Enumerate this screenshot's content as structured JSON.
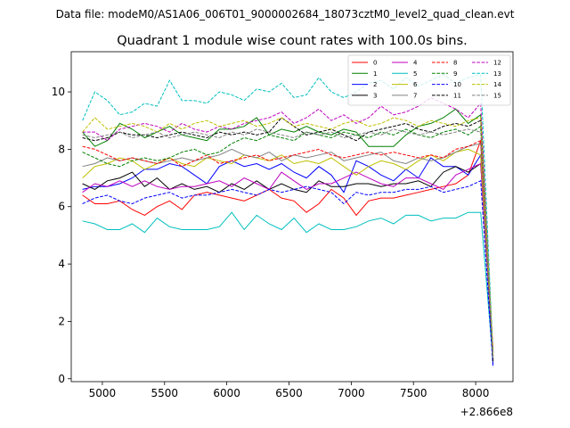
{
  "suptitle": "Data file: modeM0/AS1A06_006T01_9000002684_18073cztM0_level2_quad_clean.evt",
  "chart_data": {
    "type": "line",
    "title": "Quadrant 1 module wise count rates with 100.0s bins.",
    "xlabel": "",
    "ylabel": "",
    "x_offset_label": "+2.866e8",
    "xlim": [
      4750,
      8300
    ],
    "ylim": [
      -0.1,
      11.4
    ],
    "x_ticks": [
      5000,
      5500,
      6000,
      6500,
      7000,
      7500,
      8000
    ],
    "y_ticks": [
      0,
      2,
      4,
      6,
      8,
      10
    ],
    "grid": false,
    "legend": {
      "placement": "top-right",
      "columns": 4
    },
    "x": [
      4840,
      4940,
      5040,
      5140,
      5240,
      5340,
      5440,
      5540,
      5640,
      5740,
      5840,
      5940,
      6040,
      6140,
      6240,
      6340,
      6440,
      6540,
      6640,
      6740,
      6840,
      6940,
      7040,
      7140,
      7240,
      7340,
      7440,
      7540,
      7640,
      7740,
      7840,
      7940,
      8040,
      8140
    ],
    "series": [
      {
        "name": "0",
        "color": "#ff0000",
        "dash": "solid",
        "values": [
          6.4,
          6.1,
          6.1,
          6.2,
          5.9,
          5.7,
          6.0,
          6.2,
          5.9,
          6.4,
          6.5,
          6.4,
          6.3,
          6.2,
          6.4,
          6.6,
          6.3,
          6.2,
          5.8,
          6.1,
          6.6,
          6.3,
          5.7,
          6.2,
          6.3,
          6.3,
          6.4,
          6.5,
          6.6,
          6.7,
          6.8,
          7.1,
          8.3,
          1.0
        ]
      },
      {
        "name": "1",
        "color": "#008000",
        "dash": "solid",
        "values": [
          8.6,
          8.1,
          8.3,
          8.9,
          8.7,
          8.4,
          8.6,
          8.8,
          8.5,
          8.4,
          8.3,
          8.7,
          8.7,
          8.8,
          9.1,
          8.5,
          8.7,
          8.6,
          8.8,
          8.6,
          8.5,
          8.7,
          8.6,
          8.1,
          8.1,
          8.1,
          8.5,
          8.8,
          8.9,
          9.1,
          9.4,
          8.9,
          9.2,
          0.8
        ]
      },
      {
        "name": "2",
        "color": "#0000ff",
        "dash": "solid",
        "values": [
          6.6,
          6.7,
          6.7,
          6.8,
          7.0,
          7.3,
          7.3,
          7.5,
          7.4,
          7.1,
          6.8,
          7.4,
          7.6,
          7.4,
          7.5,
          7.3,
          7.5,
          7.2,
          7.0,
          7.4,
          7.1,
          6.5,
          7.6,
          7.4,
          7.1,
          6.9,
          7.3,
          7.0,
          7.7,
          7.4,
          7.4,
          7.1,
          7.8,
          0.5
        ]
      },
      {
        "name": "3",
        "color": "#000000",
        "dash": "solid",
        "values": [
          6.8,
          6.6,
          6.9,
          7.0,
          7.2,
          6.7,
          7.0,
          6.6,
          6.8,
          6.6,
          6.7,
          6.5,
          6.8,
          6.6,
          6.9,
          6.6,
          6.8,
          6.6,
          6.5,
          6.9,
          6.7,
          6.7,
          6.8,
          6.8,
          6.7,
          6.8,
          6.8,
          6.9,
          6.7,
          7.2,
          7.4,
          7.2,
          7.5,
          0.8
        ]
      },
      {
        "name": "4",
        "color": "#bf00bf",
        "dash": "solid",
        "values": [
          6.5,
          6.8,
          6.7,
          6.9,
          6.7,
          6.9,
          6.7,
          6.6,
          6.7,
          6.7,
          6.8,
          6.9,
          6.7,
          7.0,
          6.8,
          6.6,
          7.2,
          6.9,
          6.6,
          6.8,
          6.8,
          7.0,
          7.2,
          7.0,
          6.8,
          6.7,
          7.0,
          7.0,
          6.8,
          6.6,
          7.1,
          7.3,
          7.5,
          0.7
        ]
      },
      {
        "name": "5",
        "color": "#00bfbf",
        "dash": "solid",
        "values": [
          5.5,
          5.4,
          5.2,
          5.2,
          5.4,
          5.1,
          5.6,
          5.3,
          5.2,
          5.2,
          5.2,
          5.3,
          5.8,
          5.2,
          5.7,
          5.4,
          5.2,
          5.6,
          5.1,
          5.4,
          5.2,
          5.2,
          5.3,
          5.5,
          5.6,
          5.4,
          5.7,
          5.7,
          5.5,
          5.6,
          5.6,
          5.8,
          5.8,
          0.6
        ]
      },
      {
        "name": "6",
        "color": "#bfbf00",
        "dash": "solid",
        "values": [
          7.0,
          7.4,
          7.5,
          7.7,
          7.6,
          7.3,
          7.5,
          7.7,
          7.5,
          7.4,
          7.7,
          7.6,
          7.5,
          7.8,
          7.7,
          7.6,
          7.8,
          7.5,
          7.6,
          7.5,
          7.7,
          7.4,
          7.1,
          7.4,
          7.6,
          7.5,
          7.3,
          7.6,
          7.8,
          7.6,
          7.9,
          8.0,
          7.8,
          0.8
        ]
      },
      {
        "name": "7",
        "color": "#808080",
        "dash": "solid",
        "values": [
          7.4,
          7.5,
          7.7,
          7.6,
          7.7,
          7.6,
          7.5,
          7.6,
          7.7,
          7.6,
          7.7,
          7.8,
          8.0,
          7.8,
          7.7,
          7.9,
          7.6,
          7.8,
          7.7,
          7.8,
          7.9,
          7.6,
          7.7,
          7.8,
          7.9,
          7.6,
          7.5,
          7.7,
          7.6,
          7.7,
          7.9,
          8.1,
          8.2,
          0.9
        ]
      },
      {
        "name": "8",
        "color": "#ff0000",
        "dash": "dashed",
        "values": [
          8.1,
          8.0,
          7.8,
          7.6,
          7.7,
          7.6,
          7.5,
          7.7,
          7.4,
          7.6,
          7.8,
          7.5,
          7.6,
          7.7,
          7.8,
          7.6,
          7.7,
          7.8,
          7.9,
          8.0,
          7.8,
          7.7,
          7.8,
          7.9,
          7.8,
          7.9,
          7.8,
          7.7,
          7.8,
          7.7,
          8.0,
          8.1,
          8.3,
          0.8
        ]
      },
      {
        "name": "9",
        "color": "#008000",
        "dash": "dashed",
        "values": [
          7.9,
          7.7,
          7.5,
          7.4,
          7.6,
          7.7,
          7.6,
          7.7,
          7.9,
          8.0,
          7.8,
          7.9,
          8.2,
          8.4,
          8.3,
          8.5,
          8.4,
          8.3,
          8.6,
          8.5,
          8.4,
          8.6,
          8.5,
          8.4,
          8.6,
          8.5,
          8.7,
          8.5,
          8.4,
          8.6,
          8.7,
          8.5,
          8.8,
          0.7
        ]
      },
      {
        "name": "10",
        "color": "#0000ff",
        "dash": "dashed",
        "values": [
          6.1,
          6.3,
          6.4,
          6.2,
          6.1,
          6.3,
          6.4,
          6.5,
          6.3,
          6.4,
          6.4,
          6.5,
          6.6,
          6.5,
          6.4,
          6.6,
          6.5,
          6.6,
          6.7,
          6.6,
          6.5,
          6.1,
          6.5,
          6.4,
          6.5,
          6.5,
          6.6,
          6.6,
          6.7,
          6.5,
          6.6,
          6.7,
          6.9,
          0.4
        ]
      },
      {
        "name": "11",
        "color": "#000000",
        "dash": "dashed",
        "values": [
          8.4,
          8.3,
          8.4,
          8.6,
          8.5,
          8.5,
          8.4,
          8.5,
          8.6,
          8.5,
          8.4,
          8.6,
          8.5,
          8.6,
          8.5,
          8.6,
          9.1,
          8.8,
          8.5,
          8.6,
          8.7,
          8.5,
          8.3,
          8.6,
          8.7,
          8.8,
          8.9,
          8.7,
          8.6,
          8.8,
          8.9,
          8.8,
          9.0,
          0.6
        ]
      },
      {
        "name": "12",
        "color": "#bf00bf",
        "dash": "dashed",
        "values": [
          8.6,
          8.6,
          8.3,
          8.7,
          8.8,
          8.9,
          8.8,
          8.6,
          8.9,
          8.7,
          8.6,
          8.8,
          8.7,
          8.9,
          9.0,
          9.1,
          9.3,
          8.9,
          9.1,
          9.4,
          9.0,
          9.2,
          8.9,
          9.1,
          9.5,
          9.2,
          9.3,
          9.5,
          9.8,
          9.6,
          9.4,
          9.1,
          9.6,
          0.7
        ]
      },
      {
        "name": "13",
        "color": "#00bfbf",
        "dash": "dashed",
        "values": [
          9.0,
          10.0,
          9.7,
          9.2,
          9.3,
          9.6,
          9.5,
          10.4,
          9.7,
          9.7,
          9.6,
          10.0,
          9.9,
          9.7,
          10.1,
          10.0,
          10.3,
          9.8,
          9.9,
          10.5,
          10.0,
          9.8,
          10.0,
          10.3,
          10.4,
          10.1,
          10.5,
          10.2,
          10.4,
          10.6,
          10.3,
          10.5,
          10.6,
          0.8
        ]
      },
      {
        "name": "14",
        "color": "#bfbf00",
        "dash": "dashed",
        "values": [
          8.6,
          9.1,
          8.7,
          8.8,
          8.9,
          8.8,
          8.6,
          8.9,
          8.7,
          8.9,
          9.0,
          8.8,
          8.9,
          9.0,
          8.8,
          8.9,
          9.1,
          8.8,
          8.9,
          8.8,
          8.7,
          8.9,
          9.0,
          8.8,
          8.9,
          9.1,
          9.0,
          8.8,
          9.0,
          8.9,
          8.8,
          9.0,
          9.1,
          0.8
        ]
      },
      {
        "name": "15",
        "color": "#808080",
        "dash": "dashed",
        "values": [
          8.5,
          8.4,
          8.5,
          8.6,
          8.4,
          8.5,
          8.6,
          8.4,
          8.5,
          8.6,
          8.5,
          8.4,
          8.6,
          8.5,
          8.7,
          8.6,
          8.5,
          8.4,
          8.6,
          8.5,
          8.6,
          8.4,
          8.5,
          8.6,
          8.5,
          8.7,
          8.6,
          8.5,
          8.6,
          8.5,
          8.6,
          8.7,
          8.6,
          0.7
        ]
      }
    ]
  }
}
